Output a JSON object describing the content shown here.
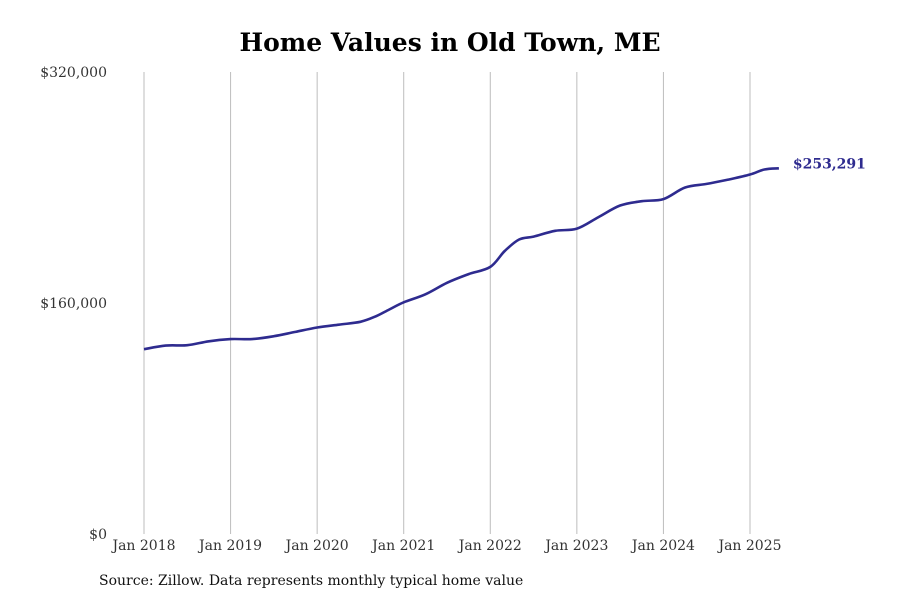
{
  "chart_data": {
    "type": "line",
    "title": "Home Values in Old Town, ME",
    "xlabel": "",
    "ylabel": "",
    "ylim": [
      0,
      320000
    ],
    "y_ticks": [
      "$0",
      "$160,000",
      "$320,000"
    ],
    "y_tick_values": [
      0,
      160000,
      320000
    ],
    "x_ticks": [
      "Jan 2018",
      "Jan 2019",
      "Jan 2020",
      "Jan 2021",
      "Jan 2022",
      "Jan 2023",
      "Jan 2024",
      "Jan 2025"
    ],
    "x_tick_dates": [
      "2018-01",
      "2019-01",
      "2020-01",
      "2021-01",
      "2022-01",
      "2023-01",
      "2024-01",
      "2025-01"
    ],
    "grid": "vertical",
    "line_color": "#2e2b8f",
    "end_label": "$253,291",
    "series": [
      {
        "x": [
          "2018-01",
          "2018-04",
          "2018-07",
          "2018-10",
          "2019-01",
          "2019-04",
          "2019-07",
          "2019-10",
          "2020-01",
          "2020-04",
          "2020-07",
          "2020-09",
          "2020-11",
          "2021-01",
          "2021-04",
          "2021-07",
          "2021-10",
          "2022-01",
          "2022-03",
          "2022-05",
          "2022-07",
          "2022-10",
          "2023-01",
          "2023-04",
          "2023-07",
          "2023-10",
          "2024-01",
          "2024-04",
          "2024-07",
          "2024-10",
          "2025-01",
          "2025-03",
          "2025-05"
        ],
        "values": [
          128000,
          130500,
          130800,
          133500,
          135000,
          135000,
          137000,
          140000,
          143000,
          145000,
          147000,
          150500,
          155500,
          160500,
          166000,
          174000,
          180000,
          185000,
          196000,
          204000,
          206000,
          210000,
          211500,
          219500,
          227500,
          230500,
          232000,
          240000,
          242500,
          245500,
          249000,
          252500,
          253291
        ]
      }
    ]
  },
  "source_text": "Source: Zillow. Data represents monthly typical home value"
}
